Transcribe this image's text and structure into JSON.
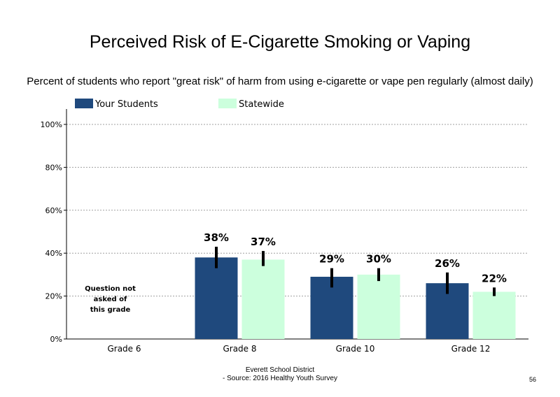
{
  "title": "Perceived Risk of E-Cigarette Smoking or Vaping",
  "subtitle": "Percent of students who report \"great risk\" of harm from using e-cigarette or vape pen regularly (almost daily)",
  "footer": {
    "line1": "Everett School District",
    "line2": "- Source: 2016 Healthy Youth Survey",
    "page_number": "56"
  },
  "colors": {
    "your_students": "#1f497d",
    "statewide": "#ccffdd",
    "error_bar": "#000000",
    "grid": "#a0a0a0"
  },
  "chart_data": {
    "type": "bar",
    "categories": [
      "Grade 6",
      "Grade 8",
      "Grade 10",
      "Grade 12"
    ],
    "series": [
      {
        "name": "Your Students",
        "values": [
          null,
          38,
          29,
          26
        ],
        "labels": [
          "",
          "38%",
          "29%",
          "26%"
        ],
        "error_low": [
          null,
          33,
          24,
          21
        ],
        "error_high": [
          null,
          43,
          33,
          31
        ]
      },
      {
        "name": "Statewide",
        "values": [
          null,
          37,
          30,
          22
        ],
        "labels": [
          "",
          "37%",
          "30%",
          "22%"
        ],
        "error_low": [
          null,
          34,
          27,
          20
        ],
        "error_high": [
          null,
          41,
          33,
          24
        ]
      }
    ],
    "ylim": [
      0,
      100
    ],
    "yticks": [
      "0%",
      "20%",
      "40%",
      "60%",
      "80%",
      "100%"
    ],
    "grid": "dotted horizontal",
    "legend": "top-left",
    "note": {
      "category": "Grade 6",
      "lines": [
        "Question not",
        "asked of",
        "this grade"
      ]
    }
  }
}
